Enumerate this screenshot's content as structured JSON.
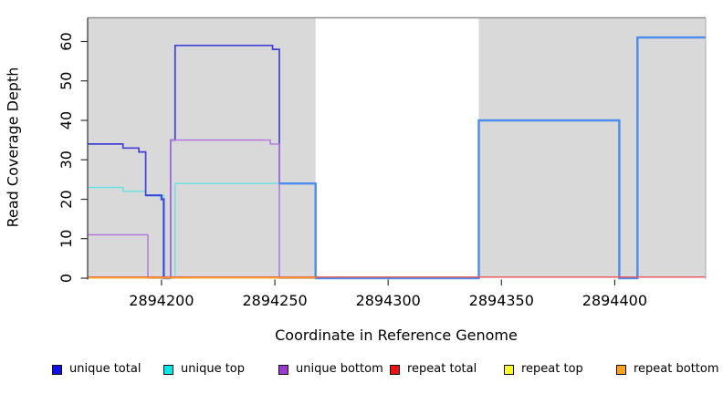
{
  "figure": {
    "x_axis_title": "Coordinate in Reference Genome",
    "y_axis_title": "Read Coverage Depth"
  },
  "chart_data": {
    "type": "line",
    "subtype": "step-coverage-plot",
    "title": "",
    "xlabel": "Coordinate in Reference Genome",
    "ylabel": "Read Coverage Depth",
    "xlim": [
      2894167.6,
      2894440.1
    ],
    "ylim": [
      0,
      66
    ],
    "x_ticks": [
      2894200,
      2894250,
      2894300,
      2894350,
      2894400
    ],
    "y_ticks": [
      0,
      10,
      20,
      30,
      40,
      50,
      60
    ],
    "grid": false,
    "legend_position": "bottom",
    "plot_background": "#ffffff",
    "shaded_region_color": "#d9d9d9",
    "background_regions": [
      {
        "x0": 2894167.6,
        "x1": 2894268,
        "color": "#d9d9d9"
      },
      {
        "x0": 2894340,
        "x1": 2894440.1,
        "color": "#d9d9d9"
      }
    ],
    "series": [
      {
        "name": "unique total",
        "steps": [
          [
            2894168,
            34
          ],
          [
            2894183,
            33
          ],
          [
            2894190,
            32
          ],
          [
            2894193,
            21
          ],
          [
            2894200,
            20
          ],
          [
            2894201,
            0
          ],
          [
            2894204,
            35
          ],
          [
            2894206,
            59
          ],
          [
            2894249,
            58
          ],
          [
            2894252,
            24
          ],
          [
            2894268,
            0
          ],
          [
            2894340,
            40
          ],
          [
            2894402,
            0
          ],
          [
            2894410,
            61
          ]
        ]
      },
      {
        "name": "unique top",
        "steps": [
          [
            2894168,
            23
          ],
          [
            2894183,
            22
          ],
          [
            2894193,
            21
          ],
          [
            2894201,
            0
          ],
          [
            2894206,
            24
          ],
          [
            2894252,
            0
          ]
        ]
      },
      {
        "name": "unique bottom",
        "steps": [
          [
            2894168,
            11
          ],
          [
            2894194,
            0
          ],
          [
            2894204,
            35
          ],
          [
            2894248,
            34
          ],
          [
            2894252,
            0
          ]
        ]
      },
      {
        "name": "repeat total",
        "steps": [
          [
            2894168,
            0
          ]
        ]
      },
      {
        "name": "repeat top",
        "steps": [
          [
            2894168,
            0
          ]
        ]
      },
      {
        "name": "repeat bottom",
        "steps": [
          [
            2894168,
            0
          ]
        ]
      }
    ],
    "render_paths": [
      {
        "id": "unique-top-line",
        "color": "#66e2e2",
        "width": 1.4,
        "dy": 0,
        "points": [
          [
            2894167.6,
            23
          ],
          [
            2894183,
            22
          ],
          [
            2894193,
            21
          ],
          [
            2894201,
            0
          ],
          [
            2894206,
            24
          ],
          [
            2894252,
            0
          ],
          [
            2894268,
            0
          ]
        ]
      },
      {
        "id": "unique-total-light-left",
        "color": "#4a8cf0",
        "width": 2.4,
        "dy": 0,
        "points": [
          [
            2894193,
            21
          ],
          [
            2894200,
            20
          ],
          [
            2894201,
            0
          ],
          [
            2894204,
            0
          ]
        ]
      },
      {
        "id": "unique-total-light-right",
        "color": "#4a8cf0",
        "width": 2.4,
        "dy": 0,
        "points": [
          [
            2894252,
            24
          ],
          [
            2894268,
            0
          ],
          [
            2894340,
            40
          ],
          [
            2894402,
            0
          ],
          [
            2894410,
            61
          ],
          [
            2894440.1,
            61
          ]
        ]
      },
      {
        "id": "unique-total-dark",
        "color": "#4141d6",
        "width": 1.7,
        "dy": 0,
        "points": [
          [
            2894167.6,
            34
          ],
          [
            2894183,
            33
          ],
          [
            2894190,
            32
          ],
          [
            2894193,
            21
          ],
          [
            2894200,
            20
          ],
          [
            2894201,
            0
          ],
          [
            2894204,
            35
          ],
          [
            2894206,
            59
          ],
          [
            2894249,
            58
          ],
          [
            2894252,
            24
          ]
        ]
      },
      {
        "id": "unique-bottom-line",
        "color": "#b273de",
        "width": 1.4,
        "dy": 0,
        "points": [
          [
            2894167.6,
            11
          ],
          [
            2894194,
            0
          ],
          [
            2894204,
            35
          ],
          [
            2894248,
            34
          ],
          [
            2894252,
            0
          ],
          [
            2894268,
            0
          ]
        ]
      },
      {
        "id": "repeat-top-line",
        "color": "#f5f520",
        "width": 1.2,
        "dy": -1.2,
        "points": [
          [
            2894167.6,
            0
          ],
          [
            2894440.1,
            0
          ]
        ]
      },
      {
        "id": "repeat-total-line",
        "color": "#e6505f",
        "width": 1.3,
        "dy": -1.2,
        "points": [
          [
            2894167.6,
            0
          ],
          [
            2894440.1,
            0
          ]
        ]
      },
      {
        "id": "repeat-bottom-line",
        "color": "#ffa320",
        "width": 1.7,
        "dy": -0.3,
        "points": [
          [
            2894167.6,
            0
          ],
          [
            2894268,
            0
          ]
        ]
      }
    ],
    "legend": [
      {
        "label": "unique total",
        "fill": "#0f0fe8"
      },
      {
        "label": "unique top",
        "fill": "#00e8e8"
      },
      {
        "label": "unique bottom",
        "fill": "#9a38cf"
      },
      {
        "label": "repeat total",
        "fill": "#e81414"
      },
      {
        "label": "repeat top",
        "fill": "#fdfd2a"
      },
      {
        "label": "repeat bottom",
        "fill": "#ffa01e"
      }
    ]
  }
}
